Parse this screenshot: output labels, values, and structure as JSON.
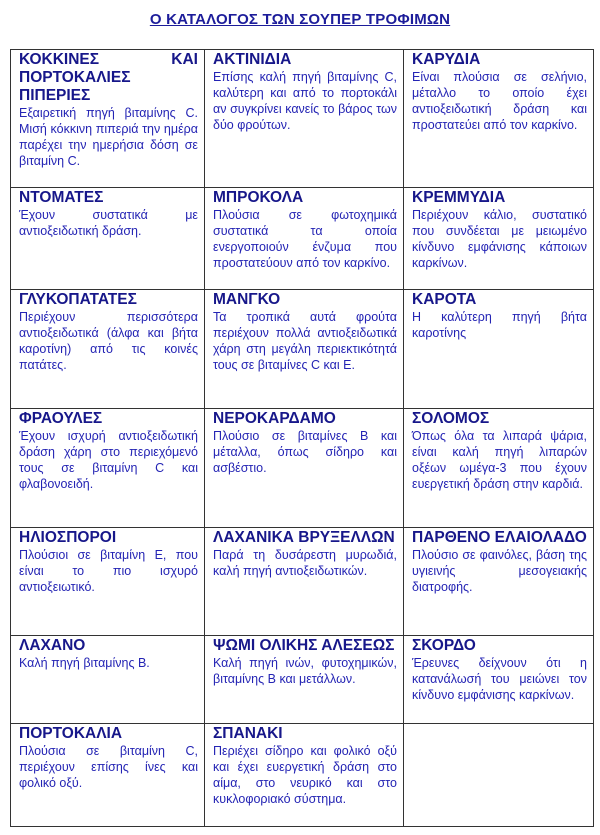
{
  "title": "Ο ΚΑΤΑΛΟΓΟΣ ΤΩΝ ΣΟΥΠΕΡ ΤΡΟΦΙΜΩΝ",
  "colors": {
    "heading": "#17178a",
    "body": "#2424b4",
    "border": "#333333"
  },
  "rows": [
    [
      {
        "name": "ΚΟΚΚΙΝΕΣ ΚΑΙ ΠΟΡΤΟΚΑΛΙΕΣ ΠΙΠΕΡΙΕΣ",
        "text": "Εξαιρετική πηγή βιταμίνης C. Μισή κόκκινη πιπεριά την ημέρα παρέχει την ημερήσια δόση σε βιταμίνη C."
      },
      {
        "name": "ΑΚΤΙΝΙΔΙΑ",
        "text": "Επίσης καλή πηγή βιταμίνης C, καλύτερη και από το πορτοκάλι αν συγκρίνει κανείς το βάρος των δύο φρούτων."
      },
      {
        "name": "ΚΑΡΥΔΙΑ",
        "text": "Είναι πλούσια σε σελήνιο, μέταλλο το οποίο έχει αντιοξειδωτική δράση και προστατεύει από τον καρκίνο."
      }
    ],
    [
      {
        "name": "ΝΤΟΜΑΤΕΣ",
        "text": "Έχουν συστατικά με αντιοξειδωτική δράση."
      },
      {
        "name": "ΜΠΡΟΚΟΛΑ",
        "text": "Πλούσια σε φωτοχημικά συστατικά τα οποία ενεργοποιούν ένζυμα που προστατεύουν από τον καρκίνο."
      },
      {
        "name": "ΚΡΕΜΜΥΔΙΑ",
        "text": "Περιέχουν κάλιο, συστατικό που συνδέεται με μειωμένο κίνδυνο εμφάνισης κάποιων καρκίνων."
      }
    ],
    [
      {
        "name": "ΓΛΥΚΟΠΑΤΑΤΕΣ",
        "text": "Περιέχουν περισσότερα αντιοξειδωτικά (άλφα και βήτα καροτίνη) από τις κοινές πατάτες."
      },
      {
        "name": "ΜΑΝΓΚΟ",
        "text": "Τα τροπικά αυτά φρούτα περιέχουν πολλά αντιοξειδωτικά χάρη στη μεγάλη περιεκτικότητά τους σε βιταμίνες C και Ε."
      },
      {
        "name": "ΚΑΡΟΤΑ",
        "text": "Η καλύτερη πηγή βήτα καροτίνης"
      }
    ],
    [
      {
        "name": "ΦΡΑΟΥΛΕΣ",
        "text": "Έχουν ισχυρή αντιοξειδωτική δράση χάρη στο περιεχόμενό τους σε βιταμίνη C και φλαβονοειδή."
      },
      {
        "name": "ΝΕΡΟΚΑΡΔΑΜΟ",
        "text": "Πλούσιο σε βιταμίνες Β και μέταλλα, όπως σίδηρο και ασβέστιο."
      },
      {
        "name": "ΣΟΛΟΜΟΣ",
        "text": "Όπως όλα τα λιπαρά ψάρια, είναι καλή πηγή λιπαρών οξέων ωμέγα-3 που έχουν ευεργετική δράση στην καρδιά."
      }
    ],
    [
      {
        "name": "ΗΛΙΟΣΠΟΡΟΙ",
        "text": "Πλούσιοι σε βιταμίνη Ε, που είναι το πιο ισχυρό αντιοξειωτικό."
      },
      {
        "name": "ΛΑΧΑΝΙΚΑ ΒΡΥΞΕΛΛΩΝ",
        "text": "Παρά τη δυσάρεστη μυρωδιά, καλή πηγή αντιοξειδωτικών."
      },
      {
        "name": "ΠΑΡΘΕΝΟ ΕΛΑΙΟΛΑΔΟ",
        "text": "Πλούσιο σε φαινόλες, βάση της υγιεινής μεσογειακής διατροφής."
      }
    ],
    [
      {
        "name": "ΛΑΧΑΝΟ",
        "text": "Καλή πηγή βιταμίνης Β."
      },
      {
        "name": "ΨΩΜΙ ΟΛΙΚΗΣ ΑΛΕΣΕΩΣ",
        "text": "Καλή πηγή ινών, φυτοχημικών, βιταμίνης Β και μετάλλων."
      },
      {
        "name": "ΣΚΟΡΔΟ",
        "text": "Έρευνες δείχνουν ότι η κατανάλωσή του μειώνει τον κίνδυνο εμφάνισης καρκίνων."
      }
    ],
    [
      {
        "name": "ΠΟΡΤΟΚΑΛΙΑ",
        "text": "Πλούσια σε βιταμίνη C, περιέχουν επίσης ίνες και φολικό οξύ."
      },
      {
        "name": "ΣΠΑΝΑΚΙ",
        "text": "Περιέχει σίδηρο και φολικό οξύ και έχει ευεργετική δράση στο αίμα, στο νευρικό και στο κυκλοφοριακό σύστημα."
      },
      {
        "name": "",
        "text": ""
      }
    ]
  ]
}
